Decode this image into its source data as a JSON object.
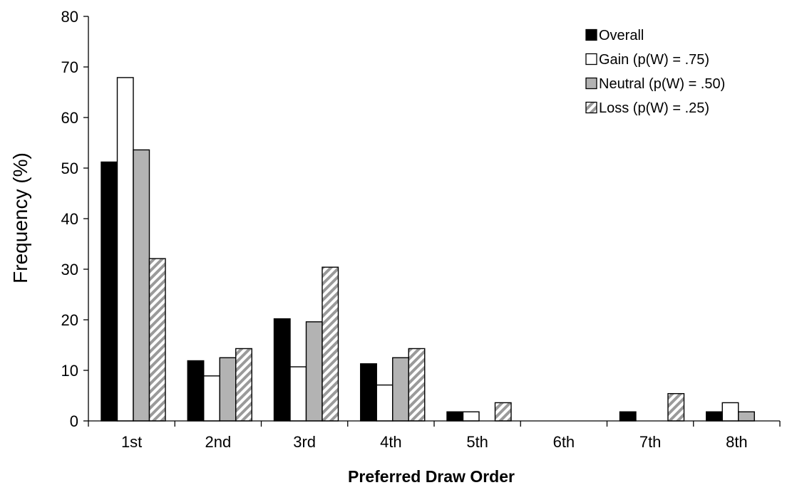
{
  "chart_data": {
    "type": "bar",
    "xlabel": "Preferred Draw Order",
    "ylabel": "Frequency (%)",
    "ylim": [
      0,
      80
    ],
    "yticks": [
      0,
      10,
      20,
      30,
      40,
      50,
      60,
      70,
      80
    ],
    "grid": false,
    "legend_position": "top-right",
    "categories": [
      "1st",
      "2nd",
      "3rd",
      "4th",
      "5th",
      "6th",
      "7th",
      "8th"
    ],
    "series": [
      {
        "name": "Overall",
        "fill": "#000000",
        "pattern": "solid",
        "values": [
          51.2,
          11.9,
          20.2,
          11.3,
          1.8,
          0,
          1.8,
          1.8
        ]
      },
      {
        "name": "Gain (p(W) = .75)",
        "fill": "#ffffff",
        "pattern": "solid",
        "values": [
          67.9,
          8.9,
          10.7,
          7.1,
          1.8,
          0,
          0,
          3.6
        ]
      },
      {
        "name": "Neutral (p(W) = .50)",
        "fill": "#b3b3b3",
        "pattern": "solid",
        "values": [
          53.6,
          12.5,
          19.6,
          12.5,
          0,
          0,
          0,
          1.8
        ]
      },
      {
        "name": "Loss (p(W) = .25)",
        "fill": "#ffffff",
        "pattern": "diagonal-stripes",
        "values": [
          32.1,
          14.3,
          30.4,
          14.3,
          3.6,
          0,
          5.4,
          0
        ]
      }
    ]
  }
}
